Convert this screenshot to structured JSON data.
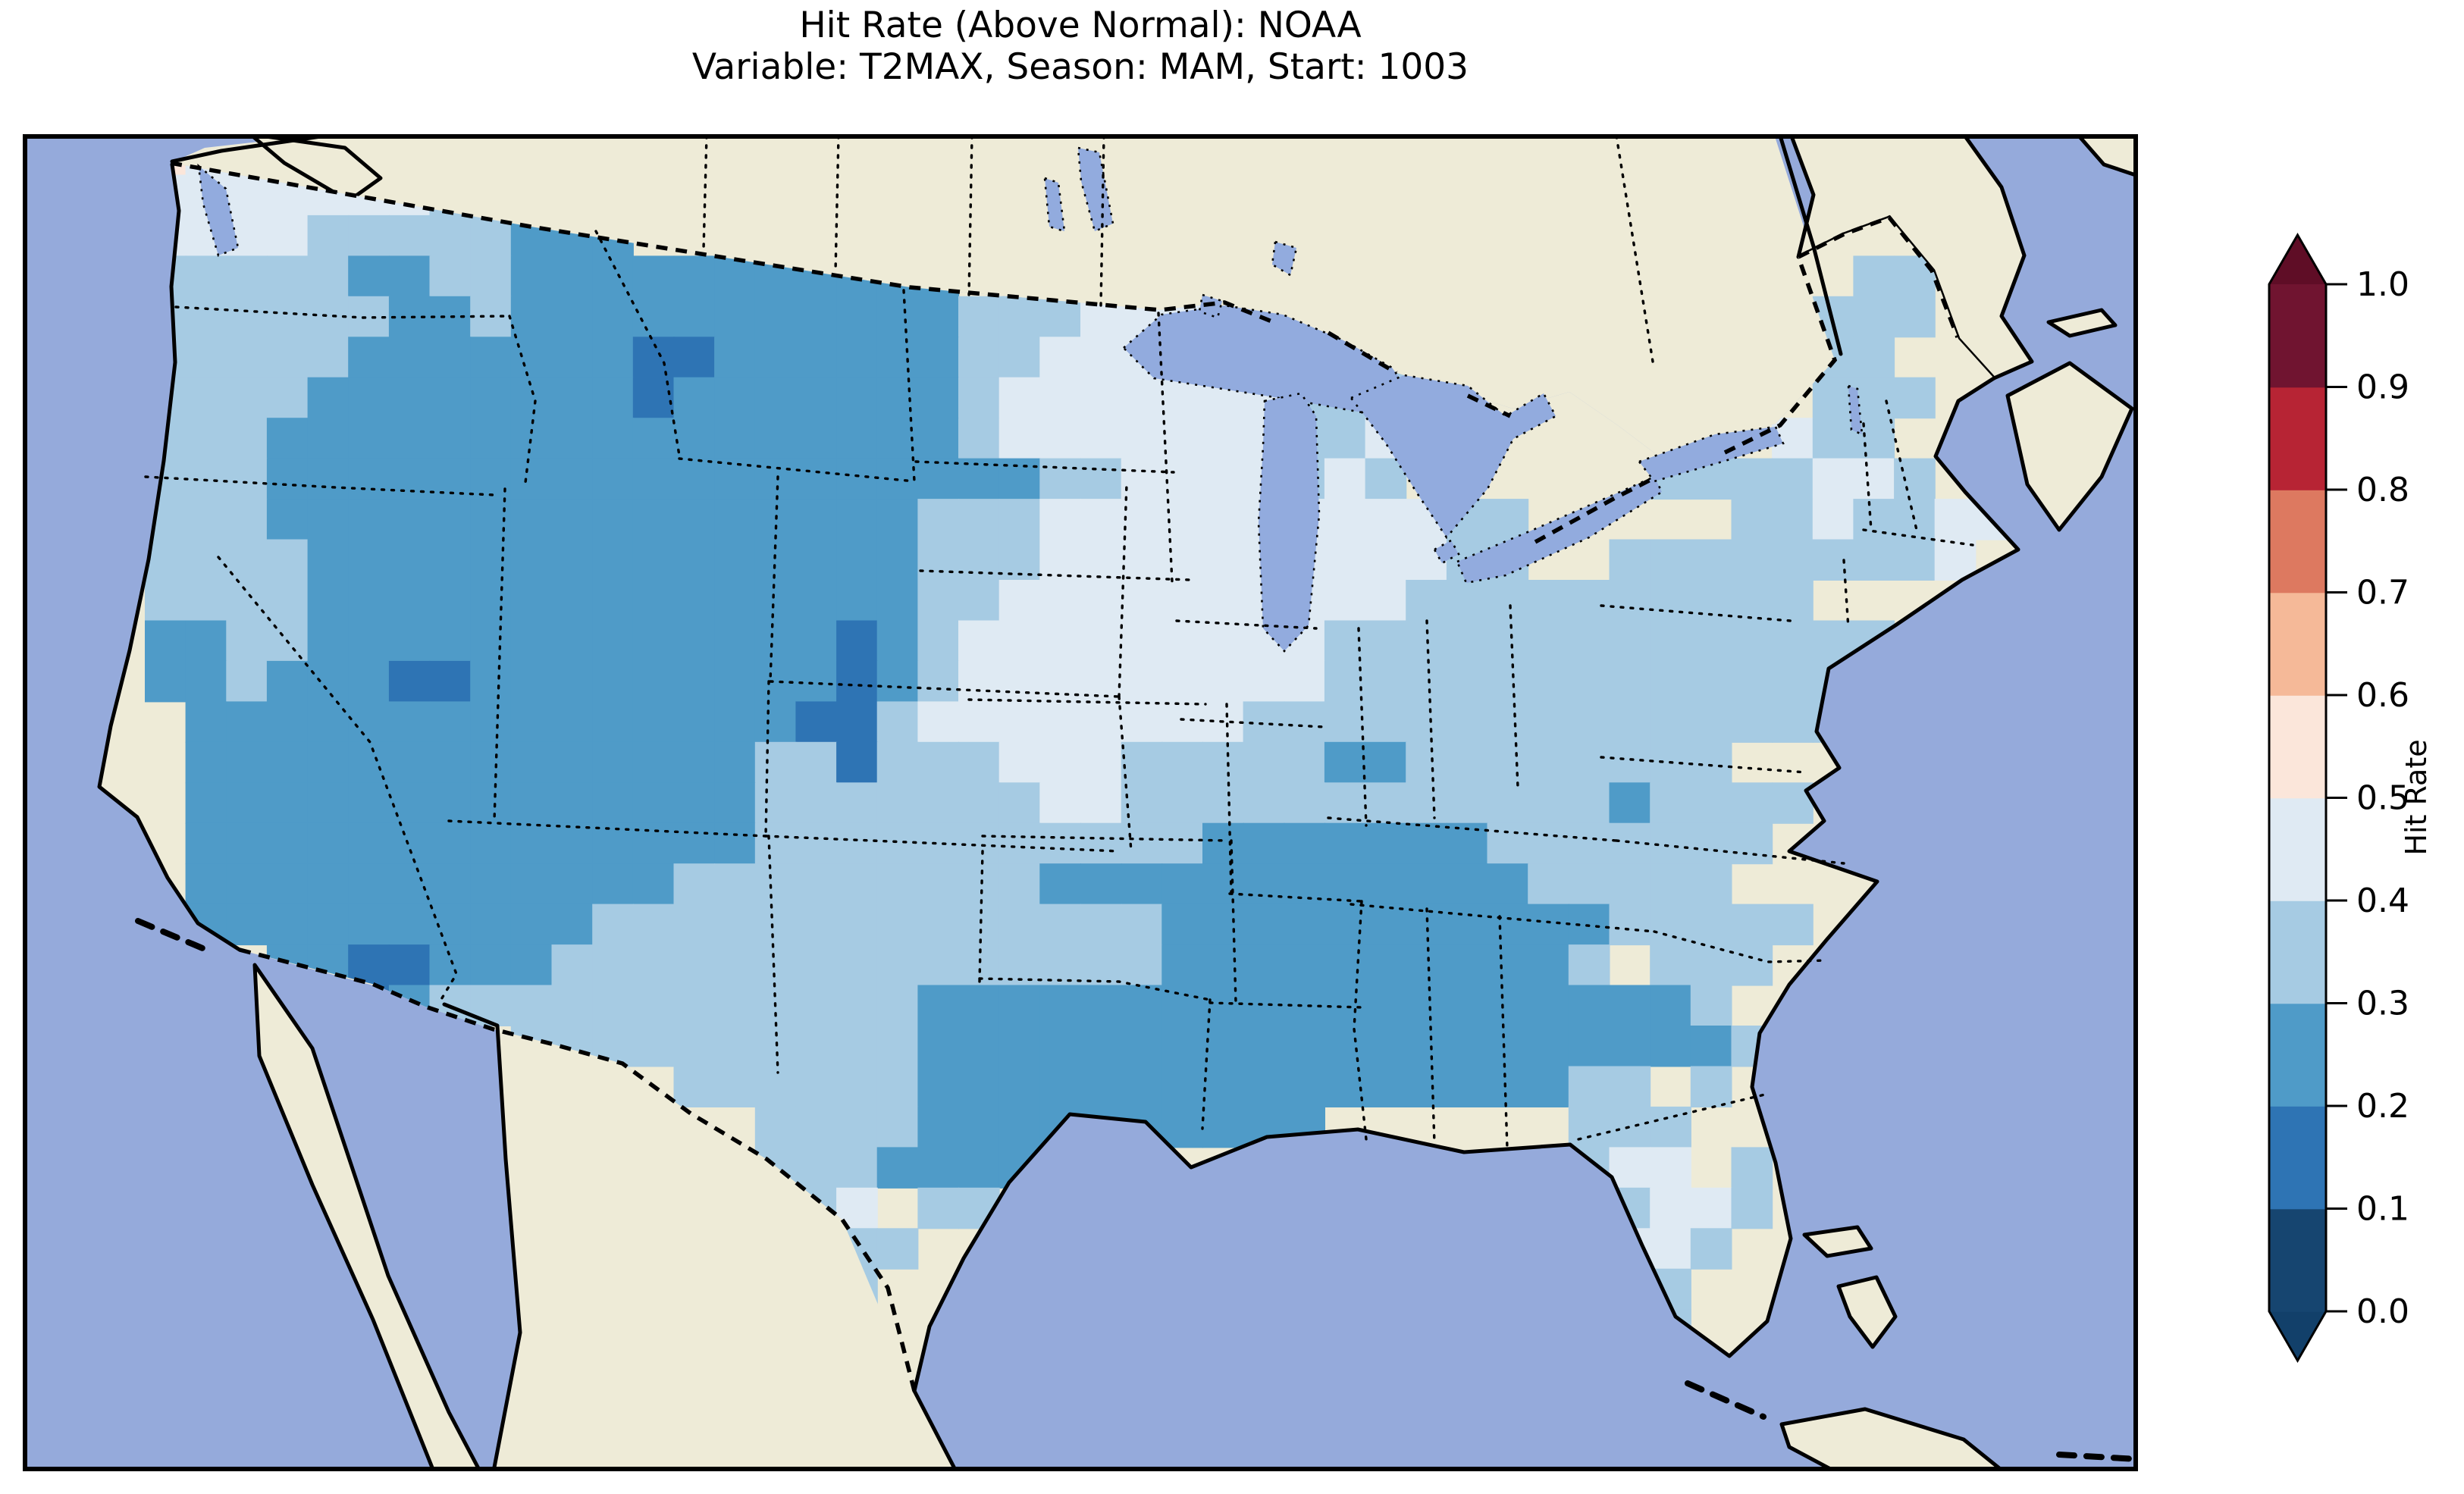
{
  "figure": {
    "title_line1": "Hit Rate (Above Normal): NOAA",
    "title_line2": "Variable: T2MAX, Season: MAM, Start: 1003"
  },
  "map": {
    "ocean_color": "#95aadb",
    "land_color": "#eeebd7",
    "lake_color": "#92abde",
    "coastline_color": "#000000",
    "region_shown": "Contiguous United States with southern Canada, northern Mexico, Gulf of Mexico, Bahamas and Cuba"
  },
  "colorbar": {
    "label": "Hit Rate",
    "ticks": [
      "1.0",
      "0.9",
      "0.8",
      "0.7",
      "0.6",
      "0.5",
      "0.4",
      "0.3",
      "0.2",
      "0.1",
      "0.0"
    ],
    "bin_ranges": [
      "0.0-0.1",
      "0.1-0.2",
      "0.2-0.3",
      "0.3-0.4",
      "0.4-0.5",
      "0.5-0.6",
      "0.6-0.7",
      "0.7-0.8",
      "0.8-0.9",
      "0.9-1.0"
    ],
    "bin_colors": [
      "#164570",
      "#2e74b4",
      "#4f9bc8",
      "#a6cbe3",
      "#dfeaf3",
      "#fbe6da",
      "#f5b998",
      "#dd7960",
      "#b72434",
      "#701430"
    ],
    "under_color": "#12406a",
    "over_color": "#5f0d26",
    "extend": "both"
  },
  "chart_data": {
    "type": "heatmap",
    "title": "Hit Rate (Above Normal): NOAA — Variable: T2MAX, Season: MAM, Start: 1003",
    "colorbar_label": "Hit Rate",
    "colorbar_ticks": [
      1.0,
      0.9,
      0.8,
      0.7,
      0.6,
      0.5,
      0.4,
      0.3,
      0.2,
      0.1,
      0.0
    ],
    "value_range_shown_on_map": [
      0.1,
      0.6
    ],
    "regional_values": {
      "Pacific Northwest (WA)": "0.4-0.5, one coastal cell 0.5-0.6",
      "Oregon / coastal California": "0.3-0.4",
      "Great Basin / Rockies (NV UT AZ NM CO WY MT ID)": "0.2-0.3",
      "darkest patches (central NV, WY-CO border strip, SE CA near Yuma)": "0.1-0.2",
      "Northern plains (ND SD NE)": "west 0.2-0.3 grading to 0.4-0.5 east",
      "Upper Midwest (MN WI IA IL MO KS)": "0.4-0.5",
      "Texas east / LA / MS / AL / SW GA": "0.2-0.3",
      "West Texas / Oklahoma / Tennessee valley / Appalachians / Mid-Atlantic / New England": "0.3-0.4",
      "Florida": "panhandle 0.2-0.3, central 0.4-0.5, south 0.3-0.4"
    },
    "grid_legend": "In hit_rate_grid.rows each char is a hit-rate bin index 0-5 (0: 0.0-0.1, 1: 0.1-0.2, 2: 0.2-0.3, 3: 0.3-0.4, 4: 0.4-0.5, 5: 0.5-0.6); '.' = no data"
  },
  "hit_rate_grid": {
    "cols": 52,
    "rows_count": 33,
    "rows": [
      "...54444............................................",
      "...444444433........................................",
      "...444433333222.....................................",
      "...33333223322222222222......................33.....",
      "...33333322322222222222333444...............333.....",
      "...3333322222221122222233444444333..........33......",
      "...3333222222221222222234444444333..........333.....",
      "...3332222222222222222234444444334.........433......",
      "...3332222222222222222222334444343......3333443.....",
      "...3332222222222222222333444444444433.....3343344......",
      "...3333222222222222222333444444444433..333333334.......",
      "...33332222222222222223344444444443333333333........",
      "...2233222222222222212344444444433333333333333........",
      "...2232221122222222212344444444433333333333333.......",
      "....22222222222222211344444444333333333333333.......",
      "....22222222222222331333444333332233333333.........",
      "....2222222222222233333334433333333333323333.........",
      "....222222222222223333333333322222223333333..........",
      "....22222222222233333333322222222222233333..........",
      "....2222222222333333333333332222222222233333..........",
      "......221122233333333333333322222222223 333............",
      "........1233333333333322222222222222222223............",
      "............3333333333222222222222222222223...........",
      "................333333222222222222222233 3...........",
      "..................33332222222222......333...........",
      "..................33322222............344 3..........",
      "..................334 33...............3443..........",
      "...................333................3443..........",
      "...................33................4333...........",
      "...................33...............44333...........",
      "...................3................44..............",
      "....................................................",
      "...................................................."
    ]
  }
}
